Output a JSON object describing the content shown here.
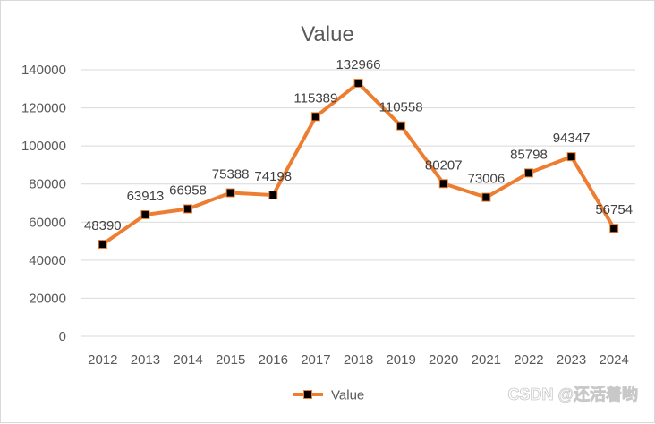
{
  "chart_data": {
    "type": "line",
    "title": "Value",
    "categories": [
      "2012",
      "2013",
      "2014",
      "2015",
      "2016",
      "2017",
      "2018",
      "2019",
      "2020",
      "2021",
      "2022",
      "2023",
      "2024"
    ],
    "series": [
      {
        "name": "Value",
        "values": [
          48390,
          63913,
          66958,
          75388,
          74198,
          115389,
          132966,
          110558,
          80207,
          73006,
          85798,
          94347,
          56754
        ],
        "color": "#ED7D31",
        "marker_color": "#000000"
      }
    ],
    "y_ticks": [
      "0",
      "20000",
      "40000",
      "60000",
      "80000",
      "100000",
      "120000",
      "140000"
    ],
    "ylim": [
      0,
      140000
    ],
    "grid": true,
    "legend": "bottom",
    "data_labels": true
  },
  "watermark": "CSDN @还活着哟"
}
